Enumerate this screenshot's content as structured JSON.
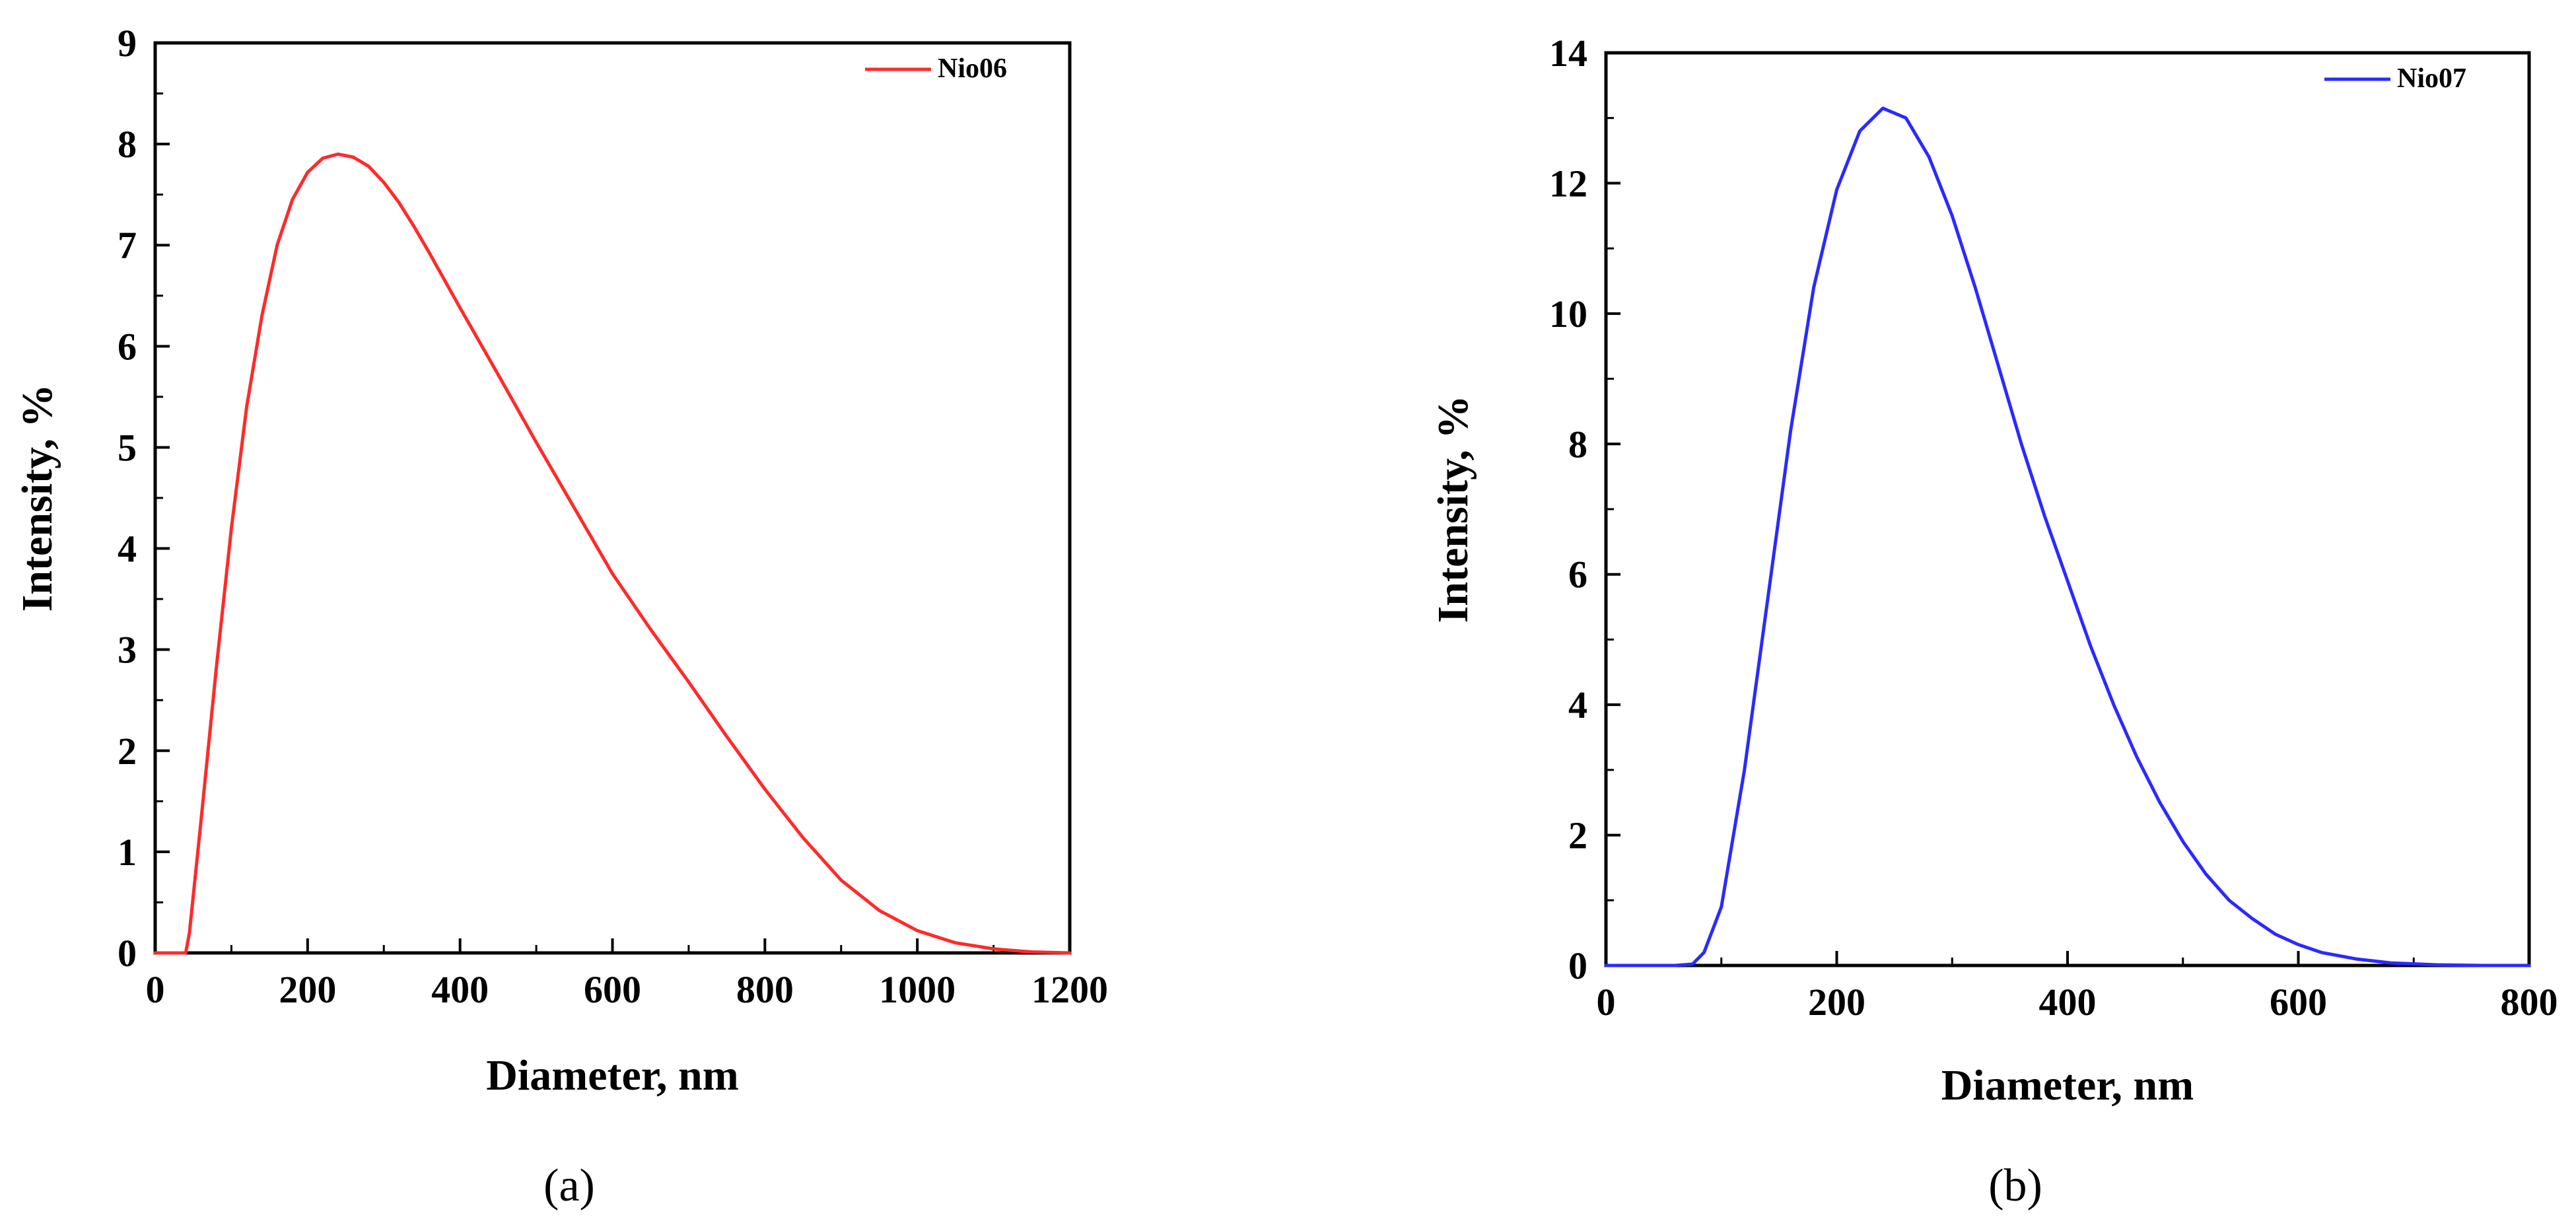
{
  "chart_data": [
    {
      "type": "line",
      "panel_label": "a",
      "xlabel": "Diameter, nm",
      "ylabel": "Intensity, %",
      "xlim": [
        0,
        1200
      ],
      "ylim": [
        0,
        9
      ],
      "xticks": [
        0,
        200,
        400,
        600,
        800,
        1000,
        1200
      ],
      "yticks": [
        0,
        1,
        2,
        3,
        4,
        5,
        6,
        7,
        8,
        9
      ],
      "legend_position": "top-right",
      "series": [
        {
          "name": "Nio06",
          "color": "#ff2a2a",
          "points": [
            [
              0,
              0
            ],
            [
              40,
              0
            ],
            [
              45,
              0.2
            ],
            [
              60,
              1.3
            ],
            [
              80,
              2.8
            ],
            [
              100,
              4.2
            ],
            [
              120,
              5.4
            ],
            [
              140,
              6.3
            ],
            [
              160,
              7.0
            ],
            [
              180,
              7.45
            ],
            [
              200,
              7.72
            ],
            [
              220,
              7.86
            ],
            [
              240,
              7.9
            ],
            [
              260,
              7.87
            ],
            [
              280,
              7.78
            ],
            [
              300,
              7.62
            ],
            [
              320,
              7.42
            ],
            [
              340,
              7.18
            ],
            [
              360,
              6.92
            ],
            [
              400,
              6.38
            ],
            [
              450,
              5.72
            ],
            [
              500,
              5.05
            ],
            [
              550,
              4.4
            ],
            [
              600,
              3.75
            ],
            [
              650,
              3.2
            ],
            [
              700,
              2.68
            ],
            [
              750,
              2.14
            ],
            [
              800,
              1.62
            ],
            [
              850,
              1.14
            ],
            [
              900,
              0.72
            ],
            [
              950,
              0.42
            ],
            [
              1000,
              0.22
            ],
            [
              1050,
              0.1
            ],
            [
              1100,
              0.04
            ],
            [
              1150,
              0.01
            ],
            [
              1200,
              0
            ]
          ]
        }
      ]
    },
    {
      "type": "line",
      "panel_label": "b",
      "xlabel": "Diameter, nm",
      "ylabel": "Intensity, %",
      "xlim": [
        0,
        800
      ],
      "ylim": [
        0,
        14
      ],
      "xticks": [
        0,
        200,
        400,
        600,
        800
      ],
      "yticks": [
        0,
        2,
        4,
        6,
        8,
        10,
        12,
        14
      ],
      "legend_position": "top-right",
      "series": [
        {
          "name": "Nio07",
          "color": "#2a2aff",
          "points": [
            [
              0,
              0
            ],
            [
              60,
              0
            ],
            [
              75,
              0.02
            ],
            [
              85,
              0.2
            ],
            [
              100,
              0.9
            ],
            [
              120,
              3.0
            ],
            [
              140,
              5.6
            ],
            [
              160,
              8.2
            ],
            [
              180,
              10.4
            ],
            [
              200,
              11.9
            ],
            [
              220,
              12.8
            ],
            [
              240,
              13.15
            ],
            [
              260,
              13.0
            ],
            [
              280,
              12.4
            ],
            [
              300,
              11.5
            ],
            [
              320,
              10.4
            ],
            [
              340,
              9.2
            ],
            [
              360,
              8.0
            ],
            [
              380,
              6.9
            ],
            [
              400,
              5.9
            ],
            [
              420,
              4.9
            ],
            [
              440,
              4.0
            ],
            [
              460,
              3.2
            ],
            [
              480,
              2.5
            ],
            [
              500,
              1.9
            ],
            [
              520,
              1.4
            ],
            [
              540,
              1.0
            ],
            [
              560,
              0.72
            ],
            [
              580,
              0.48
            ],
            [
              600,
              0.32
            ],
            [
              620,
              0.2
            ],
            [
              650,
              0.1
            ],
            [
              680,
              0.04
            ],
            [
              720,
              0.01
            ],
            [
              760,
              0
            ],
            [
              800,
              0
            ]
          ]
        }
      ]
    }
  ],
  "captions": [
    "(a)",
    "(b)"
  ]
}
